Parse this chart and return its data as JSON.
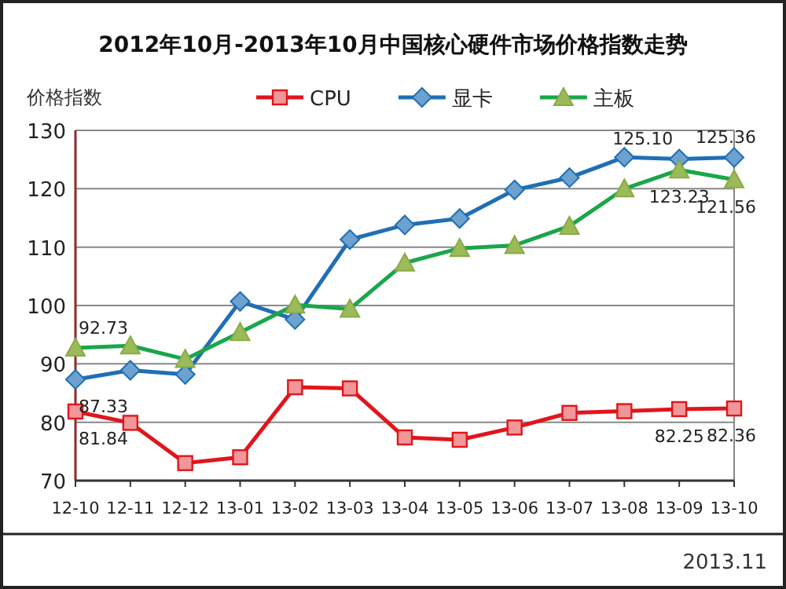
{
  "chart_data": {
    "type": "line",
    "title": "2012年10月-2013年10月中国核心硬件市场价格指数走势",
    "ylabel": "价格指数",
    "categories": [
      "12-10",
      "12-11",
      "12-12",
      "13-01",
      "13-02",
      "13-03",
      "13-04",
      "13-05",
      "13-06",
      "13-07",
      "13-08",
      "13-09",
      "13-10"
    ],
    "series": [
      {
        "name": "CPU",
        "color": "#e0161c",
        "marker": "square",
        "values": [
          81.84,
          79.9,
          73.0,
          74.0,
          86.0,
          85.8,
          77.4,
          77.0,
          79.1,
          81.6,
          81.9,
          82.25,
          82.36
        ],
        "value_labels": [
          "81.84",
          null,
          null,
          null,
          null,
          null,
          null,
          null,
          null,
          null,
          null,
          "82.25",
          "82.36"
        ]
      },
      {
        "name": "显卡",
        "color": "#1f6fb5",
        "marker": "diamond",
        "values": [
          87.33,
          88.9,
          88.2,
          100.7,
          97.6,
          111.3,
          113.8,
          114.9,
          119.8,
          121.9,
          125.4,
          125.1,
          125.36
        ],
        "value_labels": [
          "87.33",
          null,
          null,
          null,
          null,
          null,
          null,
          null,
          null,
          null,
          null,
          "125.10",
          "125.36"
        ]
      },
      {
        "name": "主板",
        "color": "#1aa64a",
        "marker": "triangle",
        "values": [
          92.73,
          93.1,
          90.8,
          95.4,
          100.1,
          99.4,
          107.3,
          109.8,
          110.3,
          113.6,
          120.0,
          123.23,
          121.56
        ],
        "value_labels": [
          "92.73",
          null,
          null,
          null,
          null,
          null,
          null,
          null,
          null,
          null,
          null,
          "123.23",
          "121.56"
        ]
      }
    ],
    "ylim": [
      70,
      130
    ],
    "yticks": [
      70,
      80,
      90,
      100,
      110,
      120,
      130
    ],
    "grid": "y",
    "legend": "top",
    "line_style": "solid",
    "annotations": [
      "2013.11"
    ]
  }
}
